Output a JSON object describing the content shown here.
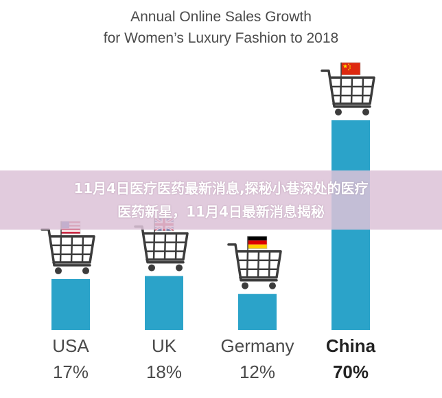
{
  "chart_data": {
    "type": "bar",
    "title_line1": "Annual Online Sales Growth",
    "title_line2": "for Women’s Luxury Fashion to 2018",
    "categories": [
      "USA",
      "UK",
      "Germany",
      "China"
    ],
    "values": [
      17,
      18,
      12,
      70
    ],
    "value_labels": [
      "17%",
      "18%",
      "12%",
      "70%"
    ],
    "highlight": "China",
    "flags": [
      "us-flag-icon",
      "uk-flag-icon",
      "germany-flag-icon",
      "china-flag-icon"
    ],
    "icon": "shopping-cart-icon",
    "bar_color": "#2ba3c9",
    "ylim": [
      0,
      70
    ],
    "grid": false,
    "legend": "none"
  },
  "overlay": {
    "line1": "11月4日医疗医药最新消息,探秘小巷深处的医疗",
    "line2": "医药新星，11月4日最新消息揭秘"
  }
}
